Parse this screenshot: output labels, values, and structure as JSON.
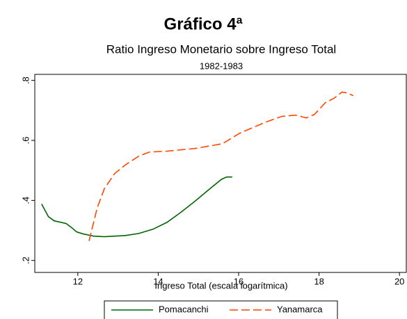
{
  "chart_data": {
    "type": "line",
    "title": "Gráfico 4ª",
    "subtitle": "Ratio Ingreso Monetario sobre Ingreso Total",
    "period": "1982-1983",
    "x_label": "Ingreso Total (escala logarítmica)",
    "xlim": [
      10.93,
      20.17
    ],
    "xticks": [
      12,
      14,
      16,
      18,
      20
    ],
    "ylim": [
      0.16,
      0.82
    ],
    "yticks": [
      {
        "value": 0.2,
        "label": ".2"
      },
      {
        "value": 0.4,
        "label": ".4"
      },
      {
        "value": 0.6,
        "label": ".6"
      },
      {
        "value": 0.8,
        "label": ".8"
      }
    ],
    "legend": "bottom",
    "series": [
      {
        "name": "Pomacanchi",
        "color": "#006400",
        "dash": "solid",
        "x": [
          11.1,
          11.27,
          11.41,
          11.71,
          11.85,
          11.97,
          12.14,
          12.4,
          12.66,
          12.9,
          13.18,
          13.52,
          13.87,
          14.22,
          14.56,
          14.91,
          15.25,
          15.57,
          15.7,
          15.84
        ],
        "values": [
          0.388,
          0.346,
          0.332,
          0.323,
          0.309,
          0.295,
          0.288,
          0.281,
          0.279,
          0.281,
          0.283,
          0.29,
          0.304,
          0.327,
          0.36,
          0.397,
          0.435,
          0.47,
          0.478,
          0.478
        ]
      },
      {
        "name": "Yanamarca",
        "color": "#ff4500",
        "dash": "dashed",
        "x": [
          12.28,
          12.48,
          12.66,
          12.92,
          13.18,
          13.52,
          13.78,
          14.22,
          14.91,
          15.6,
          16.03,
          16.64,
          17.07,
          17.42,
          17.68,
          17.88,
          18.16,
          18.37,
          18.57,
          18.71,
          18.85
        ],
        "values": [
          0.265,
          0.374,
          0.439,
          0.49,
          0.518,
          0.548,
          0.561,
          0.564,
          0.573,
          0.589,
          0.624,
          0.659,
          0.68,
          0.684,
          0.675,
          0.686,
          0.726,
          0.74,
          0.761,
          0.758,
          0.749
        ]
      }
    ]
  }
}
